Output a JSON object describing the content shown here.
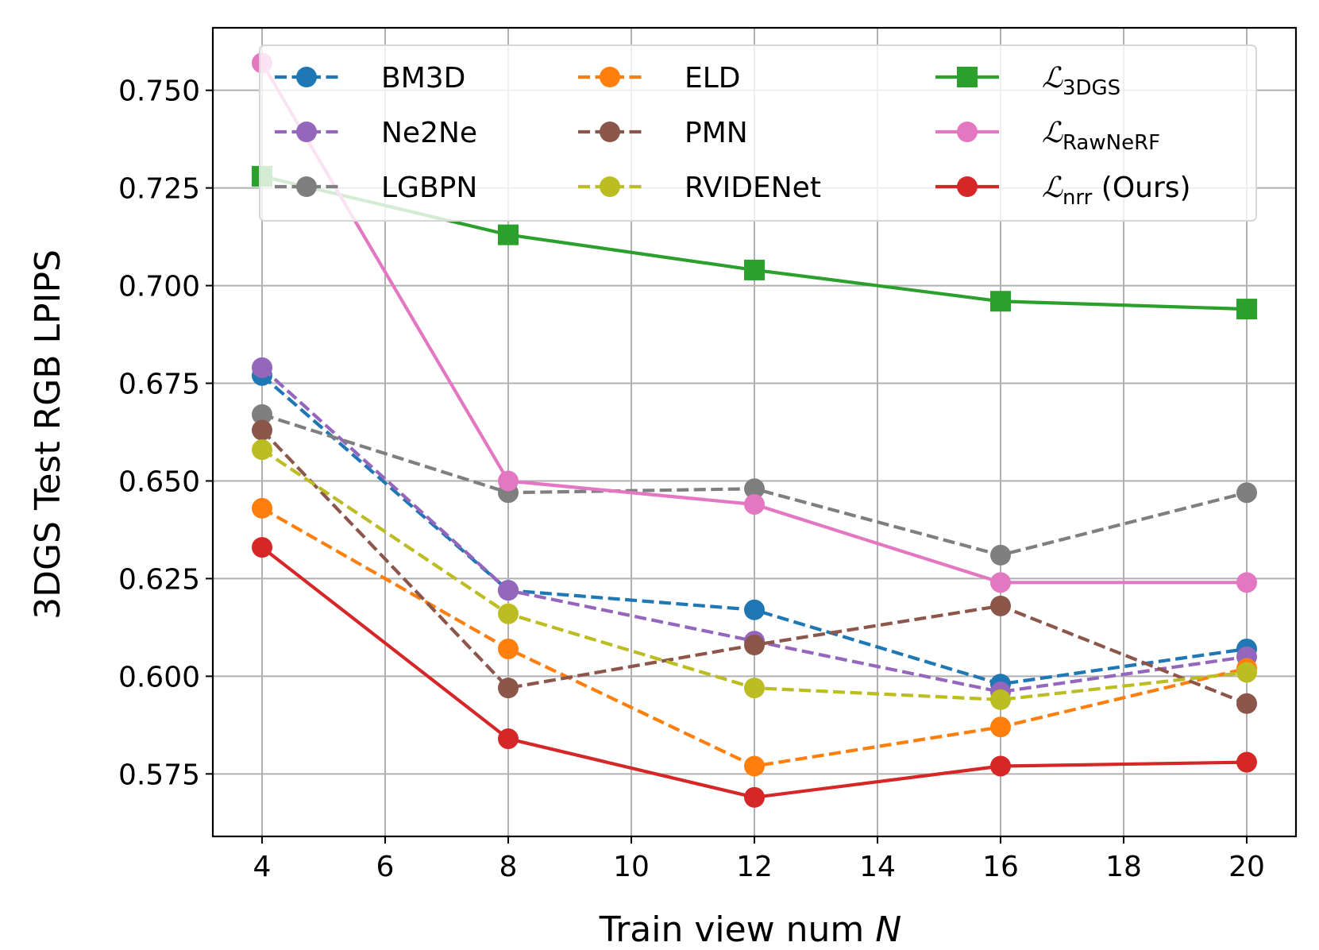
{
  "chart_data": {
    "type": "line",
    "title": "",
    "xlabel": "Train view num",
    "xlabel_var": "N",
    "ylabel": "3DGS Test RGB LPIPS",
    "xlim": [
      3.2,
      20.8
    ],
    "ylim": [
      0.559,
      0.766
    ],
    "grid": true,
    "legend_position": "top",
    "x": [
      4,
      8,
      12,
      16,
      20
    ],
    "x_ticks": [
      4,
      6,
      8,
      10,
      12,
      14,
      16,
      18,
      20
    ],
    "y_ticks": [
      0.575,
      0.6,
      0.625,
      0.65,
      0.675,
      0.7,
      0.725,
      0.75
    ],
    "x_tick_labels": [
      "4",
      "6",
      "8",
      "10",
      "12",
      "14",
      "16",
      "18",
      "20"
    ],
    "y_tick_labels": [
      "0.575",
      "0.600",
      "0.625",
      "0.650",
      "0.675",
      "0.700",
      "0.725",
      "0.750"
    ],
    "series": [
      {
        "name": "BM3D",
        "legend": {
          "main": "BM3D",
          "sub": "",
          "suffix": ""
        },
        "color": "#1f77b4",
        "dashed": true,
        "marker": "circle",
        "values": [
          0.677,
          0.622,
          0.617,
          0.598,
          0.607
        ]
      },
      {
        "name": "Ne2Ne",
        "legend": {
          "main": "Ne2Ne",
          "sub": "",
          "suffix": ""
        },
        "color": "#9467bd",
        "dashed": true,
        "marker": "circle",
        "values": [
          0.679,
          0.622,
          0.609,
          0.596,
          0.605
        ]
      },
      {
        "name": "LGBPN",
        "legend": {
          "main": "LGBPN",
          "sub": "",
          "suffix": ""
        },
        "color": "#7f7f7f",
        "dashed": true,
        "marker": "circle",
        "values": [
          0.667,
          0.647,
          0.648,
          0.631,
          0.647
        ]
      },
      {
        "name": "ELD",
        "legend": {
          "main": "ELD",
          "sub": "",
          "suffix": ""
        },
        "color": "#ff7f0e",
        "dashed": true,
        "marker": "circle",
        "values": [
          0.643,
          0.607,
          0.577,
          0.587,
          0.602
        ]
      },
      {
        "name": "PMN",
        "legend": {
          "main": "PMN",
          "sub": "",
          "suffix": ""
        },
        "color": "#8c564b",
        "dashed": true,
        "marker": "circle",
        "values": [
          0.663,
          0.597,
          0.608,
          0.618,
          0.593
        ]
      },
      {
        "name": "RVIDENet",
        "legend": {
          "main": "RVIDENet",
          "sub": "",
          "suffix": ""
        },
        "color": "#bcbd22",
        "dashed": true,
        "marker": "circle",
        "values": [
          0.658,
          0.616,
          0.597,
          0.594,
          0.601
        ]
      },
      {
        "name": "L_3DGS",
        "legend": {
          "main": "ℒ",
          "sub": "3DGS",
          "suffix": ""
        },
        "color": "#2ca02c",
        "dashed": false,
        "marker": "square",
        "values": [
          0.728,
          0.713,
          0.704,
          0.696,
          0.694
        ]
      },
      {
        "name": "L_RawNeRF",
        "legend": {
          "main": "ℒ",
          "sub": "RawNeRF",
          "suffix": ""
        },
        "color": "#e377c2",
        "dashed": false,
        "marker": "circle",
        "values": [
          0.757,
          0.65,
          0.644,
          0.624,
          0.624
        ]
      },
      {
        "name": "L_nrr (Ours)",
        "legend": {
          "main": "ℒ",
          "sub": "nrr",
          "suffix": " (Ours)"
        },
        "color": "#d62728",
        "dashed": false,
        "marker": "circle",
        "values": [
          0.633,
          0.584,
          0.569,
          0.577,
          0.578
        ]
      }
    ]
  }
}
